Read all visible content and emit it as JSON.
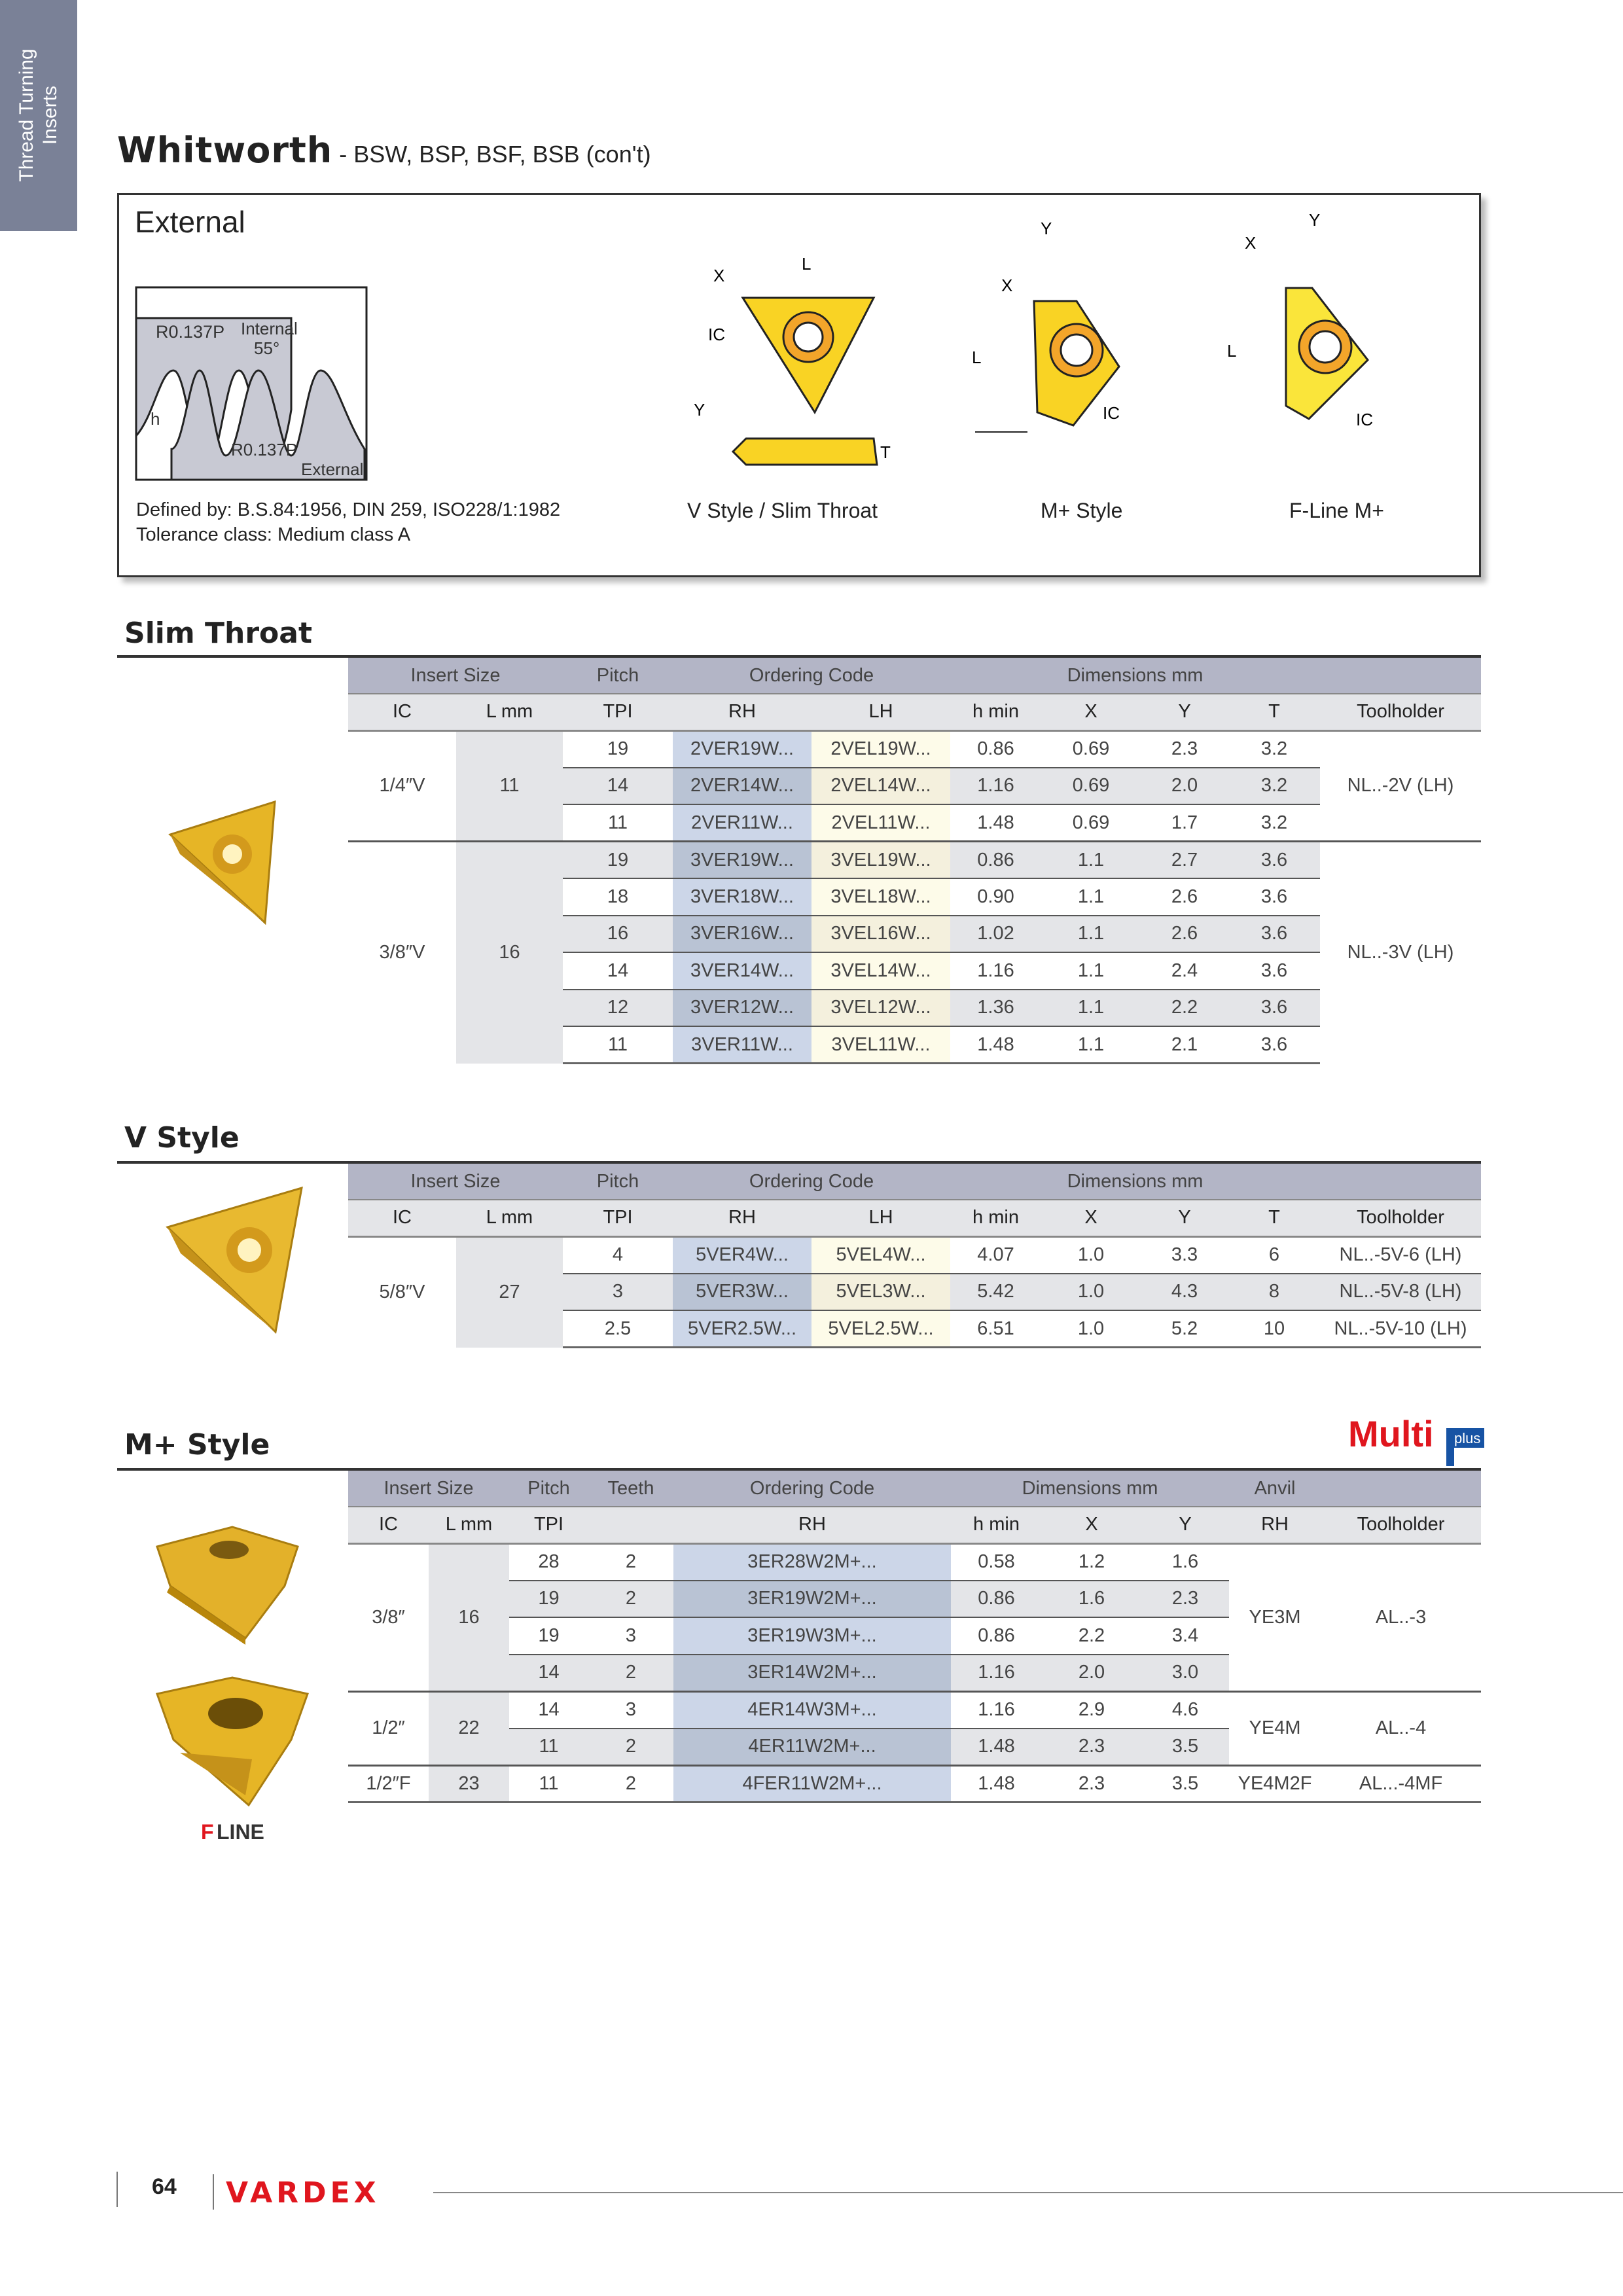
{
  "sidebar_tab": {
    "line1": "Thread Turning",
    "line2": "Inserts"
  },
  "title": {
    "main": "Whitworth",
    "sub": " - BSW, BSP, BSF, BSB (con't)"
  },
  "external_box": {
    "title": "External",
    "profile": {
      "r_top": "R0.137P",
      "internal": "Internal",
      "angle": "55°",
      "h": "h",
      "r_bottom": "R0.137P",
      "external": "External"
    },
    "defined_by": "Defined by: B.S.84:1956, DIN 259, ISO228/1:1982",
    "tolerance": "Tolerance class: Medium class A",
    "diagrams": [
      {
        "label": "V Style / Slim Throat",
        "dims": [
          "X",
          "L",
          "IC",
          "Y",
          "T"
        ]
      },
      {
        "label": "M+ Style",
        "dims": [
          "Y",
          "X",
          "L",
          "IC"
        ]
      },
      {
        "label": "F-Line M+",
        "dims": [
          "Y",
          "X",
          "L",
          "IC"
        ]
      }
    ]
  },
  "colors": {
    "insert_gold": "#f2c200",
    "header_band": "#b3b5c6",
    "subheader": "#e4e5e8",
    "rh_column": "#ccd6e8",
    "lh_column": "#fdfbe9",
    "brand_red": "#e0161e",
    "tab": "#7a8197"
  },
  "slim_throat": {
    "title": "Slim Throat",
    "header_groups": [
      {
        "label": "Insert Size",
        "span": 2
      },
      {
        "label": "Pitch",
        "span": 1
      },
      {
        "label": "Ordering Code",
        "span": 2
      },
      {
        "label": "Dimensions mm",
        "span": 4
      },
      {
        "label": "",
        "span": 1
      }
    ],
    "columns": [
      "IC",
      "L mm",
      "TPI",
      "RH",
      "LH",
      "h min",
      "X",
      "Y",
      "T",
      "Toolholder"
    ],
    "groups": [
      {
        "ic": "1/4″V",
        "l": "11",
        "tail": [
          "NL..-2V (LH)"
        ],
        "rows": [
          [
            "19",
            "2VER19W...",
            "2VEL19W...",
            "0.86",
            "0.69",
            "2.3",
            "3.2"
          ],
          [
            "14",
            "2VER14W...",
            "2VEL14W...",
            "1.16",
            "0.69",
            "2.0",
            "3.2"
          ],
          [
            "11",
            "2VER11W...",
            "2VEL11W...",
            "1.48",
            "0.69",
            "1.7",
            "3.2"
          ]
        ]
      },
      {
        "ic": "3/8″V",
        "l": "16",
        "tail": [
          "NL..-3V (LH)"
        ],
        "rows": [
          [
            "19",
            "3VER19W...",
            "3VEL19W...",
            "0.86",
            "1.1",
            "2.7",
            "3.6"
          ],
          [
            "18",
            "3VER18W...",
            "3VEL18W...",
            "0.90",
            "1.1",
            "2.6",
            "3.6"
          ],
          [
            "16",
            "3VER16W...",
            "3VEL16W...",
            "1.02",
            "1.1",
            "2.6",
            "3.6"
          ],
          [
            "14",
            "3VER14W...",
            "3VEL14W...",
            "1.16",
            "1.1",
            "2.4",
            "3.6"
          ],
          [
            "12",
            "3VER12W...",
            "3VEL12W...",
            "1.36",
            "1.1",
            "2.2",
            "3.6"
          ],
          [
            "11",
            "3VER11W...",
            "3VEL11W...",
            "1.48",
            "1.1",
            "2.1",
            "3.6"
          ]
        ]
      }
    ]
  },
  "v_style": {
    "title": "V Style",
    "header_groups": [
      {
        "label": "Insert Size",
        "span": 2
      },
      {
        "label": "Pitch",
        "span": 1
      },
      {
        "label": "Ordering Code",
        "span": 2
      },
      {
        "label": "Dimensions mm",
        "span": 4
      },
      {
        "label": "",
        "span": 1
      }
    ],
    "columns": [
      "IC",
      "L mm",
      "TPI",
      "RH",
      "LH",
      "h min",
      "X",
      "Y",
      "T",
      "Toolholder"
    ],
    "groups": [
      {
        "ic": "5/8″V",
        "l": "27",
        "tail": [],
        "rows": [
          [
            "4",
            "5VER4W...",
            "5VEL4W...",
            "4.07",
            "1.0",
            "3.3",
            "6",
            "NL..-5V-6 (LH)"
          ],
          [
            "3",
            "5VER3W...",
            "5VEL3W...",
            "5.42",
            "1.0",
            "4.3",
            "8",
            "NL..-5V-8 (LH)"
          ],
          [
            "2.5",
            "5VER2.5W...",
            "5VEL2.5W...",
            "6.51",
            "1.0",
            "5.2",
            "10",
            "NL..-5V-10 (LH)"
          ]
        ]
      }
    ]
  },
  "m_plus": {
    "title": "M+ Style",
    "logo": "Multi plus",
    "fline_logo": "F-LINE",
    "header_groups": [
      {
        "label": "Insert Size",
        "span": 2
      },
      {
        "label": "Pitch",
        "span": 1
      },
      {
        "label": "Teeth",
        "span": 1
      },
      {
        "label": "Ordering Code",
        "span": 1
      },
      {
        "label": "Dimensions mm",
        "span": 3
      },
      {
        "label": "Anvil",
        "span": 1
      },
      {
        "label": "",
        "span": 1
      }
    ],
    "columns": [
      "IC",
      "L mm",
      "TPI",
      "",
      "RH",
      "h min",
      "X",
      "Y",
      "RH",
      "Toolholder"
    ],
    "groups": [
      {
        "ic": "3/8″",
        "l": "16",
        "tail": [
          "YE3M",
          "AL..-3"
        ],
        "rows": [
          [
            "28",
            "2",
            "3ER28W2M+...",
            "0.58",
            "1.2",
            "1.6"
          ],
          [
            "19",
            "2",
            "3ER19W2M+...",
            "0.86",
            "1.6",
            "2.3"
          ],
          [
            "19",
            "3",
            "3ER19W3M+...",
            "0.86",
            "2.2",
            "3.4"
          ],
          [
            "14",
            "2",
            "3ER14W2M+...",
            "1.16",
            "2.0",
            "3.0"
          ]
        ]
      },
      {
        "ic": "1/2″",
        "l": "22",
        "tail": [
          "YE4M",
          "AL..-4"
        ],
        "rows": [
          [
            "14",
            "3",
            "4ER14W3M+...",
            "1.16",
            "2.9",
            "4.6"
          ],
          [
            "11",
            "2",
            "4ER11W2M+...",
            "1.48",
            "2.3",
            "3.5"
          ]
        ]
      },
      {
        "ic": "1/2″F",
        "l": "23",
        "tail": [
          "YE4M2F",
          "AL...-4MF"
        ],
        "rows": [
          [
            "11",
            "2",
            "4FER11W2M+...",
            "1.48",
            "2.3",
            "3.5"
          ]
        ]
      }
    ]
  },
  "footer": {
    "page": "64",
    "brand": "VARDEX"
  }
}
